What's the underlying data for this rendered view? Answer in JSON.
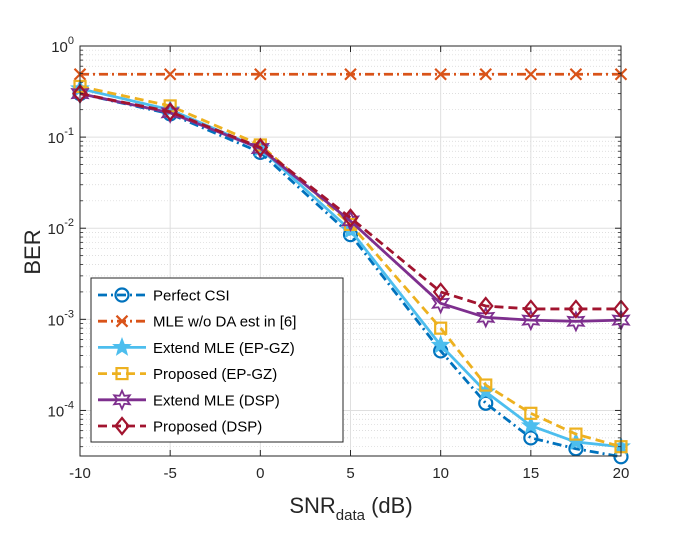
{
  "chart_data": {
    "type": "line",
    "yscale": "log",
    "xlabel_main": "SNR",
    "xlabel_sub": "data",
    "xlabel_unit": " (dB)",
    "ylabel": "BER",
    "xlim": [
      -10,
      20
    ],
    "ylim_exp": [
      -4.5,
      0
    ],
    "xticks": [
      -10,
      -5,
      0,
      5,
      10,
      15,
      20
    ],
    "xtick_labels": [
      "-10",
      "-5",
      "0",
      "5",
      "10",
      "15",
      "20"
    ],
    "yticks": [
      {
        "base": "10",
        "exp": "0",
        "value": 1
      },
      {
        "base": "10",
        "exp": "-1",
        "value": 0.1
      },
      {
        "base": "10",
        "exp": "-2",
        "value": 0.01
      },
      {
        "base": "10",
        "exp": "-3",
        "value": 0.001
      },
      {
        "base": "10",
        "exp": "-4",
        "value": 0.0001
      }
    ],
    "grid": true,
    "legend_position": "bottom-left",
    "series": [
      {
        "name": "Perfect CSI",
        "color": "#0072BD",
        "dash": "dashdot",
        "marker": "circle",
        "x": [
          -10,
          -5,
          0,
          5,
          10,
          12.5,
          15,
          17.5,
          20
        ],
        "y": [
          0.3,
          0.18,
          0.068,
          0.0085,
          0.00045,
          0.00012,
          5e-05,
          3.8e-05,
          3.1e-05
        ]
      },
      {
        "name": "MLE w/o DA est in [6]",
        "color": "#D95319",
        "dash": "dashdot",
        "marker": "x",
        "x": [
          -10,
          -5,
          0,
          5,
          10,
          12.5,
          15,
          17.5,
          20
        ],
        "y": [
          0.49,
          0.49,
          0.49,
          0.49,
          0.49,
          0.49,
          0.49,
          0.49,
          0.49
        ]
      },
      {
        "name": "Extend MLE (EP-GZ)",
        "color": "#4DBEEE",
        "dash": "solid",
        "marker": "star",
        "x": [
          -10,
          -5,
          0,
          5,
          10,
          12.5,
          15,
          17.5,
          20
        ],
        "y": [
          0.34,
          0.2,
          0.075,
          0.0095,
          0.00052,
          0.00016,
          6.8e-05,
          4.5e-05,
          4e-05
        ]
      },
      {
        "name": "Proposed (EP-GZ)",
        "color": "#EDB120",
        "dash": "dashed",
        "marker": "square",
        "x": [
          -10,
          -5,
          0,
          5,
          10,
          12.5,
          15,
          17.5,
          20
        ],
        "y": [
          0.36,
          0.22,
          0.082,
          0.011,
          0.0008,
          0.00019,
          9.3e-05,
          5.5e-05,
          4e-05
        ]
      },
      {
        "name": "Extend MLE (DSP)",
        "color": "#7E2F8E",
        "dash": "solid",
        "marker": "hexagram",
        "x": [
          -10,
          -5,
          0,
          5,
          10,
          12.5,
          15,
          17.5,
          20
        ],
        "y": [
          0.3,
          0.185,
          0.075,
          0.012,
          0.0015,
          0.00105,
          0.00098,
          0.00095,
          0.00098
        ]
      },
      {
        "name": "Proposed (DSP)",
        "color": "#A2142F",
        "dash": "dashed",
        "marker": "diamond",
        "x": [
          -10,
          -5,
          0,
          5,
          10,
          12.5,
          15,
          17.5,
          20
        ],
        "y": [
          0.3,
          0.19,
          0.077,
          0.013,
          0.002,
          0.0014,
          0.0013,
          0.0013,
          0.0013
        ]
      }
    ]
  }
}
